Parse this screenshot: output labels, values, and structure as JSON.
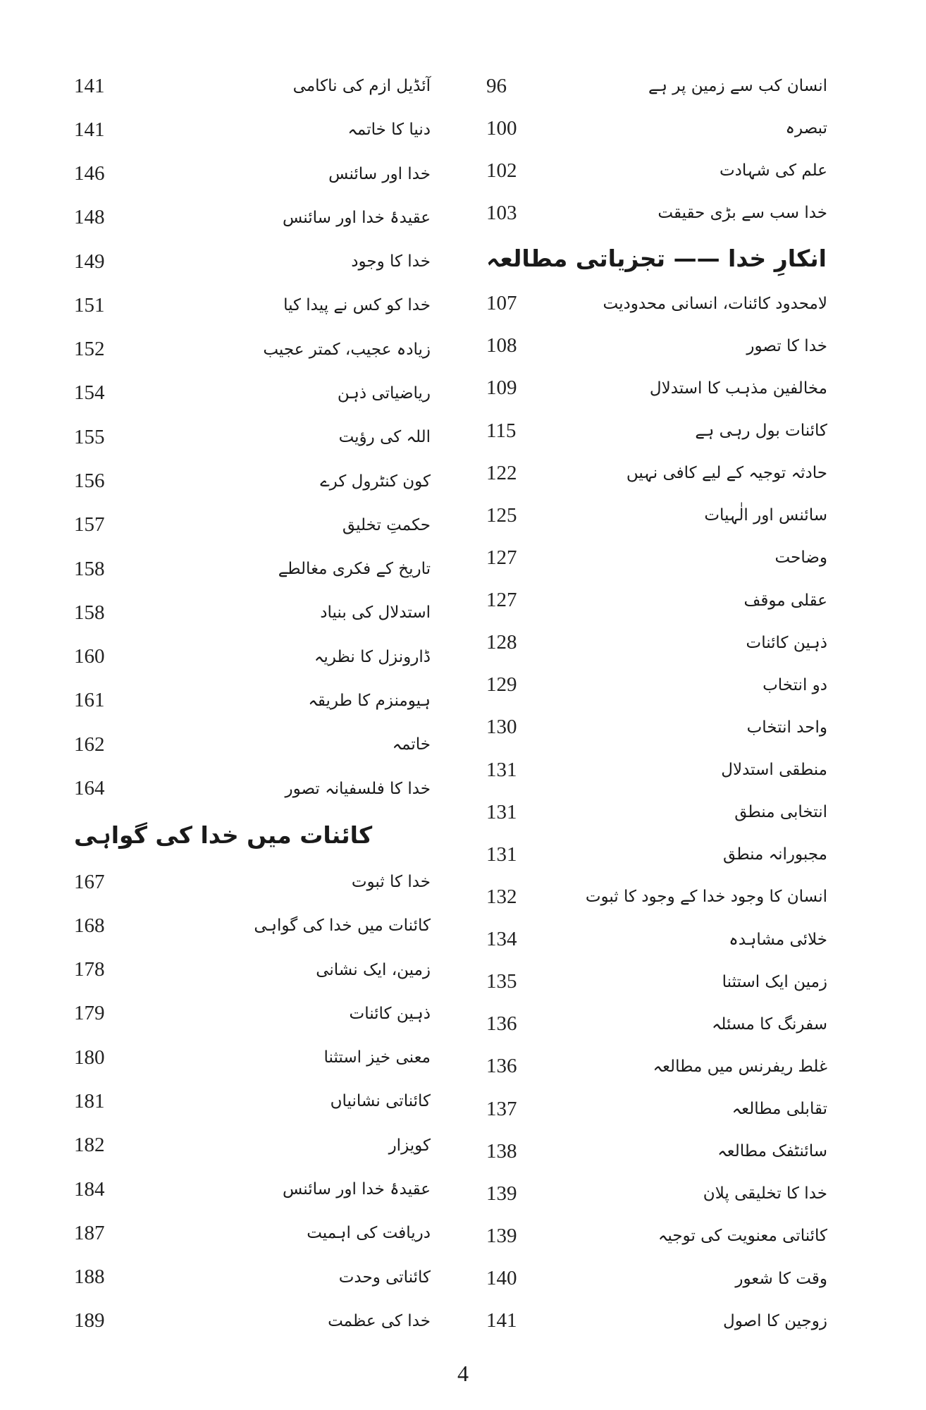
{
  "right_column": [
    {
      "title": "انسان کب سے زمین پر ہے",
      "page": "96"
    },
    {
      "title": "تبصرہ",
      "page": "100"
    },
    {
      "title": "علم کی شہادت",
      "page": "102"
    },
    {
      "title": "خدا سب سے بڑی حقیقت",
      "page": "103"
    },
    {
      "heading": "انکارِ خدا —— تجزیاتی مطالعہ"
    },
    {
      "title": "لامحدود کائنات، انسانی محدودیت",
      "page": "107"
    },
    {
      "title": "خدا کا تصور",
      "page": "108"
    },
    {
      "title": "مخالفین مذہب کا استدلال",
      "page": "109"
    },
    {
      "title": "کائنات بول رہی ہے",
      "page": "115"
    },
    {
      "title": "حادثہ توجیہ کے لیے کافی نہیں",
      "page": "122"
    },
    {
      "title": "سائنس اور الٰہیات",
      "page": "125"
    },
    {
      "title": "وضاحت",
      "page": "127"
    },
    {
      "title": "عقلی موقف",
      "page": "127"
    },
    {
      "title": "ذہین کائنات",
      "page": "128"
    },
    {
      "title": "دو انتخاب",
      "page": "129"
    },
    {
      "title": "واحد انتخاب",
      "page": "130"
    },
    {
      "title": "منطقی استدلال",
      "page": "131"
    },
    {
      "title": "انتخابی منطق",
      "page": "131"
    },
    {
      "title": "مجبورانہ منطق",
      "page": "131"
    },
    {
      "title": "انسان کا وجود خدا کے وجود کا ثبوت",
      "page": "132"
    },
    {
      "title": "خلائی مشاہدہ",
      "page": "134"
    },
    {
      "title": "زمین ایک استثنا",
      "page": "135"
    },
    {
      "title": "سفرنگ کا مسئلہ",
      "page": "136"
    },
    {
      "title": "غلط ریفرنس میں مطالعہ",
      "page": "136"
    },
    {
      "title": "تقابلی مطالعہ",
      "page": "137"
    },
    {
      "title": "سائنٹفک مطالعہ",
      "page": "138"
    },
    {
      "title": "خدا کا تخلیقی پلان",
      "page": "139"
    },
    {
      "title": "کائناتی معنویت کی توجیہ",
      "page": "139"
    },
    {
      "title": "وقت کا شعور",
      "page": "140"
    },
    {
      "title": "زوجین کا اصول",
      "page": "141"
    }
  ],
  "left_column": [
    {
      "title": "آئڈیل ازم کی ناکامی",
      "page": "141"
    },
    {
      "title": "دنیا کا خاتمہ",
      "page": "141"
    },
    {
      "title": "خدا اور سائنس",
      "page": "146"
    },
    {
      "title": "عقیدۂ خدا اور سائنس",
      "page": "148"
    },
    {
      "title": "خدا کا وجود",
      "page": "149"
    },
    {
      "title": "خدا کو کس نے پیدا کیا",
      "page": "151"
    },
    {
      "title": "زیادہ عجیب، کمتر عجیب",
      "page": "152"
    },
    {
      "title": "ریاضیاتی ذہن",
      "page": "154"
    },
    {
      "title": "اللہ کی رؤیت",
      "page": "155"
    },
    {
      "title": "کون کنٹرول کرے",
      "page": "156"
    },
    {
      "title": "حکمتِ تخلیق",
      "page": "157"
    },
    {
      "title": "تاریخ کے فکری مغالطے",
      "page": "158"
    },
    {
      "title": "استدلال کی بنیاد",
      "page": "158"
    },
    {
      "title": "ڈارونزل کا نظریہ",
      "page": "160"
    },
    {
      "title": "ہیومنزم کا طریقہ",
      "page": "161"
    },
    {
      "title": "خاتمہ",
      "page": "162"
    },
    {
      "title": "خدا کا فلسفیانہ تصور",
      "page": "164"
    },
    {
      "heading": "کائنات میں خدا کی گواہی"
    },
    {
      "title": "خدا کا ثبوت",
      "page": "167"
    },
    {
      "title": "کائنات میں خدا کی گواہی",
      "page": "168"
    },
    {
      "title": "زمین، ایک نشانی",
      "page": "178"
    },
    {
      "title": "ذہین کائنات",
      "page": "179"
    },
    {
      "title": "معنی خیز استثنا",
      "page": "180"
    },
    {
      "title": "کائناتی نشانیاں",
      "page": "181"
    },
    {
      "title": "کویزار",
      "page": "182"
    },
    {
      "title": "عقیدۂ خدا اور سائنس",
      "page": "184"
    },
    {
      "title": "دریافت کی اہمیت",
      "page": "187"
    },
    {
      "title": "کائناتی وحدت",
      "page": "188"
    },
    {
      "title": "خدا کی عظمت",
      "page": "189"
    }
  ],
  "page_number": "4"
}
